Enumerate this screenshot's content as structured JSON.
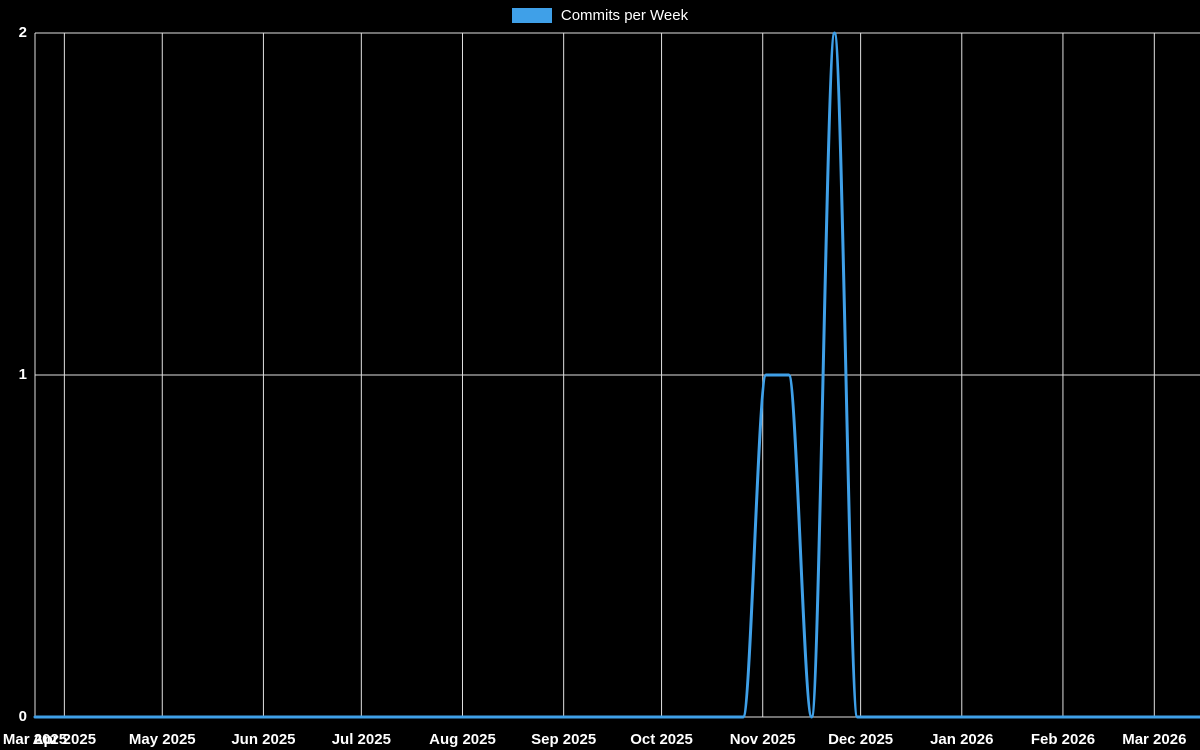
{
  "page": {
    "background": "#000000"
  },
  "chart_data": {
    "type": "line",
    "title": "",
    "xlabel": "",
    "ylabel": "",
    "grid": true,
    "legend_position": "top",
    "legend": [
      "Commits per Week"
    ],
    "colors": {
      "series": "#3fa0e8",
      "grid": "#e0e0e0",
      "text": "#ffffff",
      "background": "#000000"
    },
    "ylim": [
      0,
      2
    ],
    "y_ticks": [
      0,
      1,
      2
    ],
    "x_domain": [
      "2025-03-23",
      "2026-03-15"
    ],
    "x_ticks": [
      {
        "label": "Mar 2025",
        "date": "2025-03-23"
      },
      {
        "label": "Apr 2025",
        "date": "2025-04-01"
      },
      {
        "label": "May 2025",
        "date": "2025-05-01"
      },
      {
        "label": "Jun 2025",
        "date": "2025-06-01"
      },
      {
        "label": "Jul 2025",
        "date": "2025-07-01"
      },
      {
        "label": "Aug 2025",
        "date": "2025-08-01"
      },
      {
        "label": "Sep 2025",
        "date": "2025-09-01"
      },
      {
        "label": "Oct 2025",
        "date": "2025-10-01"
      },
      {
        "label": "Nov 2025",
        "date": "2025-11-01"
      },
      {
        "label": "Dec 2025",
        "date": "2025-12-01"
      },
      {
        "label": "Jan 2026",
        "date": "2026-01-01"
      },
      {
        "label": "Feb 2026",
        "date": "2026-02-01"
      },
      {
        "label": "Mar 2026",
        "date": "2026-03-01"
      }
    ],
    "series": [
      {
        "name": "Commits per Week",
        "color": "#3fa0e8",
        "start_date": "2025-03-23",
        "interval_days": 7,
        "values": [
          0,
          0,
          0,
          0,
          0,
          0,
          0,
          0,
          0,
          0,
          0,
          0,
          0,
          0,
          0,
          0,
          0,
          0,
          0,
          0,
          0,
          0,
          0,
          0,
          0,
          0,
          0,
          0,
          0,
          0,
          0,
          0,
          1,
          1,
          0,
          2,
          0,
          0,
          0,
          0,
          0,
          0,
          0,
          0,
          0,
          0,
          0,
          0,
          0,
          0,
          0,
          0
        ]
      }
    ]
  }
}
